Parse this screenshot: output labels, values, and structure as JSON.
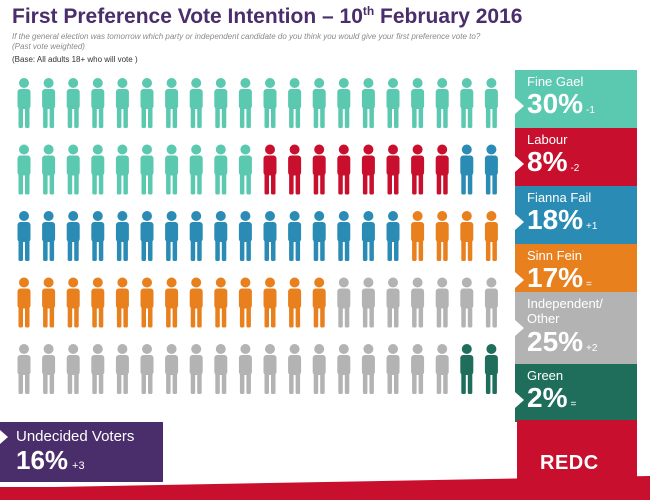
{
  "header": {
    "title_main": "First Preference Vote Intention – 10",
    "title_sup": "th",
    "title_end": " February 2016",
    "subtitle": "If the general election was tomorrow which party or independent candidate do you think you would give your first preference vote to? (Past vote weighted)",
    "base": "(Base: All adults 18+ who will vote )"
  },
  "colors": {
    "fine_gael": "#5bc8b0",
    "labour": "#c8102e",
    "fianna_fail": "#2a8cb5",
    "sinn_fein": "#e8801e",
    "independent": "#b3b3b3",
    "green": "#1f6e5c",
    "undecided": "#4a2d6b",
    "brand": "#c8102e"
  },
  "chart_data": {
    "type": "pictogram",
    "title": "First Preference Vote Intention – 10th February 2016",
    "icons_per_row": 20,
    "rows": 5,
    "unit": "percent of decided voters",
    "series": [
      {
        "name": "Fine Gael",
        "value": 30,
        "change": "-1",
        "color": "#5bc8b0"
      },
      {
        "name": "Labour",
        "value": 8,
        "change": "-2",
        "color": "#c8102e"
      },
      {
        "name": "Fianna Fail",
        "value": 18,
        "change": "+1",
        "color": "#2a8cb5"
      },
      {
        "name": "Sinn Fein",
        "value": 17,
        "change": "=",
        "color": "#e8801e"
      },
      {
        "name": "Independent/ Other",
        "value": 25,
        "change": "+2",
        "color": "#b3b3b3"
      },
      {
        "name": "Green",
        "value": 2,
        "change": "=",
        "color": "#1f6e5c"
      }
    ]
  },
  "panels": [
    {
      "name": "Fine Gael",
      "value": "30%",
      "change": "-1"
    },
    {
      "name": "Labour",
      "value": "8%",
      "change": "-2"
    },
    {
      "name": "Fianna Fail",
      "value": "18%",
      "change": "+1"
    },
    {
      "name": "Sinn Fein",
      "value": "17%",
      "change": "="
    },
    {
      "name": "Independent/ Other",
      "value": "25%",
      "change": "+2"
    },
    {
      "name": "Green",
      "value": "2%",
      "change": "="
    }
  ],
  "undecided": {
    "label": "Undecided Voters",
    "value": "16%",
    "change": "+3"
  },
  "logo": {
    "text": "REDC"
  }
}
